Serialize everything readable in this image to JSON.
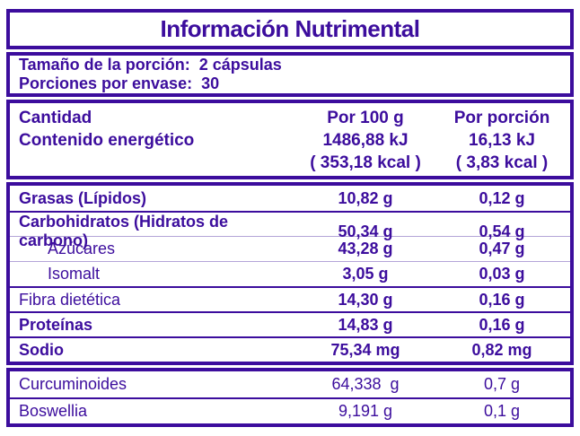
{
  "colors": {
    "purple": "#3C0D9D",
    "light_divider": "#B4A5D8"
  },
  "title": "Información Nutrimental",
  "serving": {
    "line1_label": "Tamaño de la porción:",
    "line1_value": "2 cápsulas",
    "line2_label": "Porciones por envase:",
    "line2_value": "30"
  },
  "header": {
    "label_line1": "Cantidad",
    "label_line2": "Contenido energético",
    "per100_lines": "Por 100 g\n1486,88 kJ\n( 353,18 kcal )",
    "portion_lines": "Por porción\n16,13 kJ\n( 3,83 kcal )"
  },
  "rows": [
    {
      "name": "Grasas (Lípidos)",
      "per100": "10,82 g",
      "portion": "0,12 g"
    },
    {
      "name": "Carbohidratos (Hidratos de carbono)",
      "per100": "50,34 g",
      "portion": "0,54 g"
    },
    {
      "name": "Azúcares",
      "per100": "43,28 g",
      "portion": "0,47 g"
    },
    {
      "name": "Isomalt",
      "per100": "3,05 g",
      "portion": "0,03 g"
    },
    {
      "name": "Fibra dietética",
      "per100": "14,30 g",
      "portion": "0,16 g"
    },
    {
      "name": "Proteínas",
      "per100": "14,83 g",
      "portion": "0,16 g"
    },
    {
      "name": "Sodio",
      "per100": "75,34 mg",
      "portion": "0,82 mg"
    }
  ],
  "extras": [
    {
      "name": "Curcuminoides",
      "per100": "64,338  g",
      "portion": "0,7 g"
    },
    {
      "name": "Boswellia",
      "per100": "9,191 g",
      "portion": "0,1 g"
    }
  ]
}
